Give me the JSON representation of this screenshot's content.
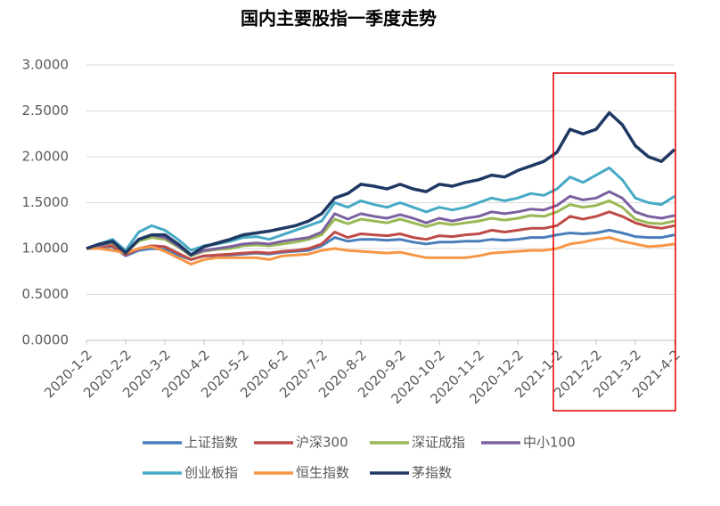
{
  "chart_data": {
    "type": "line",
    "title": "国内主要股指一季度走势",
    "categories": [
      "2020-1-2",
      null,
      null,
      "2020-2-2",
      null,
      null,
      "2020-3-2",
      null,
      null,
      "2020-4-2",
      null,
      null,
      "2020-5-2",
      null,
      null,
      "2020-6-2",
      null,
      null,
      "2020-7-2",
      null,
      null,
      "2020-8-2",
      null,
      null,
      "2020-9-2",
      null,
      null,
      "2020-10-2",
      null,
      null,
      "2020-11-2",
      null,
      null,
      "2020-12-2",
      null,
      null,
      "2021-1-2",
      null,
      null,
      "2021-2-2",
      null,
      null,
      "2021-3-2",
      null,
      null,
      "2021-4-2"
    ],
    "ylim": [
      0,
      3
    ],
    "yticks": [
      {
        "value": 0,
        "label": "0.0000"
      },
      {
        "value": 0.5,
        "label": "0.5000"
      },
      {
        "value": 1,
        "label": "1.0000"
      },
      {
        "value": 1.5,
        "label": "1.5000"
      },
      {
        "value": 2,
        "label": "2.0000"
      },
      {
        "value": 2.5,
        "label": "2.5000"
      },
      {
        "value": 3,
        "label": "3.0000"
      }
    ],
    "grid": true,
    "legend": "bottom",
    "series": [
      {
        "name": "上证指数",
        "color": "#4a7ebb",
        "values": [
          1.0,
          1.01,
          1.02,
          0.92,
          0.98,
          1.0,
          0.99,
          0.93,
          0.88,
          0.92,
          0.92,
          0.93,
          0.94,
          0.95,
          0.94,
          0.96,
          0.97,
          0.98,
          1.03,
          1.12,
          1.08,
          1.1,
          1.1,
          1.09,
          1.1,
          1.07,
          1.05,
          1.07,
          1.07,
          1.08,
          1.08,
          1.1,
          1.09,
          1.1,
          1.12,
          1.12,
          1.15,
          1.17,
          1.16,
          1.17,
          1.2,
          1.17,
          1.13,
          1.12,
          1.12,
          1.15
        ]
      },
      {
        "name": "沪深300",
        "color": "#be4b48",
        "values": [
          1.0,
          1.02,
          1.03,
          0.93,
          1.0,
          1.03,
          1.02,
          0.95,
          0.88,
          0.92,
          0.93,
          0.94,
          0.95,
          0.96,
          0.95,
          0.97,
          0.98,
          1.0,
          1.05,
          1.18,
          1.12,
          1.16,
          1.15,
          1.14,
          1.16,
          1.12,
          1.1,
          1.14,
          1.13,
          1.15,
          1.16,
          1.2,
          1.18,
          1.2,
          1.22,
          1.22,
          1.25,
          1.35,
          1.32,
          1.35,
          1.4,
          1.35,
          1.28,
          1.24,
          1.22,
          1.25
        ]
      },
      {
        "name": "深证成指",
        "color": "#98b954",
        "values": [
          1.0,
          1.03,
          1.06,
          0.96,
          1.08,
          1.12,
          1.1,
          1.02,
          0.92,
          0.97,
          0.99,
          1.0,
          1.03,
          1.04,
          1.03,
          1.05,
          1.07,
          1.1,
          1.15,
          1.32,
          1.27,
          1.32,
          1.3,
          1.28,
          1.32,
          1.28,
          1.24,
          1.28,
          1.26,
          1.28,
          1.3,
          1.33,
          1.31,
          1.33,
          1.36,
          1.35,
          1.4,
          1.48,
          1.45,
          1.47,
          1.52,
          1.45,
          1.32,
          1.28,
          1.27,
          1.3
        ]
      },
      {
        "name": "中小100",
        "color": "#7d60a0",
        "values": [
          1.0,
          1.03,
          1.07,
          0.96,
          1.1,
          1.15,
          1.12,
          1.03,
          0.93,
          0.98,
          1.0,
          1.02,
          1.05,
          1.06,
          1.05,
          1.08,
          1.1,
          1.12,
          1.18,
          1.38,
          1.32,
          1.38,
          1.35,
          1.33,
          1.37,
          1.33,
          1.28,
          1.33,
          1.3,
          1.33,
          1.35,
          1.4,
          1.38,
          1.4,
          1.43,
          1.42,
          1.47,
          1.57,
          1.53,
          1.55,
          1.62,
          1.55,
          1.4,
          1.35,
          1.33,
          1.36
        ]
      },
      {
        "name": "创业板指",
        "color": "#46aac5",
        "values": [
          1.0,
          1.05,
          1.1,
          0.98,
          1.18,
          1.25,
          1.2,
          1.1,
          0.98,
          1.03,
          1.05,
          1.08,
          1.12,
          1.13,
          1.1,
          1.15,
          1.2,
          1.25,
          1.3,
          1.5,
          1.45,
          1.52,
          1.48,
          1.45,
          1.5,
          1.45,
          1.4,
          1.45,
          1.42,
          1.45,
          1.5,
          1.55,
          1.52,
          1.55,
          1.6,
          1.58,
          1.65,
          1.78,
          1.72,
          1.8,
          1.88,
          1.75,
          1.55,
          1.5,
          1.48,
          1.57
        ]
      },
      {
        "name": "恒生指数",
        "color": "#f79646",
        "values": [
          1.0,
          1.0,
          0.98,
          0.95,
          1.0,
          1.02,
          0.97,
          0.9,
          0.83,
          0.88,
          0.9,
          0.9,
          0.9,
          0.9,
          0.88,
          0.92,
          0.93,
          0.94,
          0.98,
          1.0,
          0.98,
          0.97,
          0.96,
          0.95,
          0.96,
          0.93,
          0.9,
          0.9,
          0.9,
          0.9,
          0.92,
          0.95,
          0.96,
          0.97,
          0.98,
          0.98,
          1.0,
          1.05,
          1.07,
          1.1,
          1.12,
          1.08,
          1.05,
          1.02,
          1.03,
          1.05
        ]
      },
      {
        "name": "茅指数",
        "color": "#1f3864",
        "values": [
          1.0,
          1.05,
          1.08,
          0.95,
          1.1,
          1.15,
          1.15,
          1.05,
          0.93,
          1.02,
          1.06,
          1.1,
          1.15,
          1.17,
          1.19,
          1.22,
          1.25,
          1.3,
          1.38,
          1.55,
          1.6,
          1.7,
          1.68,
          1.65,
          1.7,
          1.65,
          1.62,
          1.7,
          1.68,
          1.72,
          1.75,
          1.8,
          1.78,
          1.85,
          1.9,
          1.95,
          2.05,
          2.3,
          2.25,
          2.3,
          2.48,
          2.35,
          2.12,
          2.0,
          1.95,
          2.08
        ]
      }
    ]
  }
}
